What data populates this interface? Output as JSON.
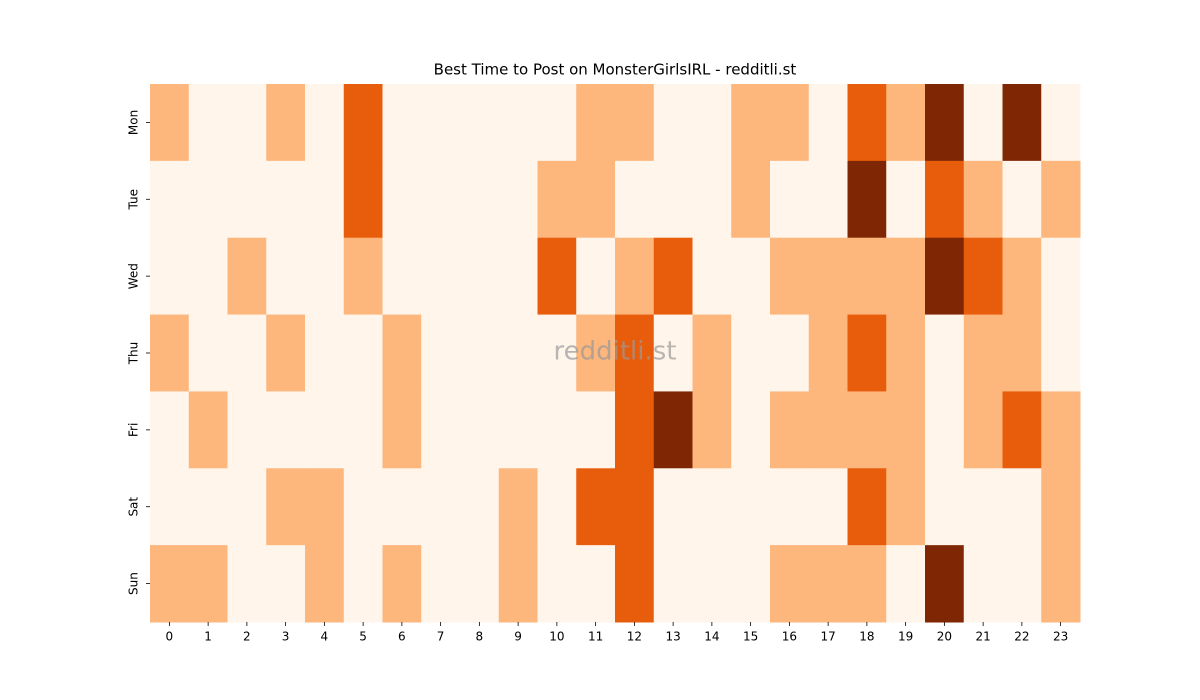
{
  "chart_data": {
    "type": "heatmap",
    "title": "Best Time to Post on MonsterGirlsIRL - redditli.st",
    "watermark": "redditli.st",
    "x_categories": [
      0,
      1,
      2,
      3,
      4,
      5,
      6,
      7,
      8,
      9,
      10,
      11,
      12,
      13,
      14,
      15,
      16,
      17,
      18,
      19,
      20,
      21,
      22,
      23
    ],
    "y_categories": [
      "Mon",
      "Tue",
      "Wed",
      "Thu",
      "Fri",
      "Sat",
      "Sun"
    ],
    "colormap": [
      "#fff5eb",
      "#fdb67c",
      "#e85d0c",
      "#7f2704"
    ],
    "values": [
      [
        1,
        0,
        0,
        1,
        0,
        2,
        0,
        0,
        0,
        0,
        0,
        1,
        1,
        0,
        0,
        1,
        1,
        0,
        2,
        1,
        3,
        0,
        3,
        0
      ],
      [
        0,
        0,
        0,
        0,
        0,
        2,
        0,
        0,
        0,
        0,
        1,
        1,
        0,
        0,
        0,
        1,
        0,
        0,
        3,
        0,
        2,
        1,
        0,
        1
      ],
      [
        0,
        0,
        1,
        0,
        0,
        1,
        0,
        0,
        0,
        0,
        2,
        0,
        1,
        2,
        0,
        0,
        1,
        1,
        1,
        1,
        3,
        2,
        1,
        0
      ],
      [
        1,
        0,
        0,
        1,
        0,
        0,
        1,
        0,
        0,
        0,
        0,
        1,
        2,
        0,
        1,
        0,
        0,
        1,
        2,
        1,
        0,
        1,
        1,
        0
      ],
      [
        0,
        1,
        0,
        0,
        0,
        0,
        1,
        0,
        0,
        0,
        0,
        0,
        2,
        3,
        1,
        0,
        1,
        1,
        1,
        1,
        0,
        1,
        2,
        1
      ],
      [
        0,
        0,
        0,
        1,
        1,
        0,
        0,
        0,
        0,
        1,
        0,
        2,
        2,
        0,
        0,
        0,
        0,
        0,
        2,
        1,
        0,
        0,
        0,
        1
      ],
      [
        1,
        1,
        0,
        0,
        1,
        0,
        1,
        0,
        0,
        1,
        0,
        0,
        2,
        0,
        0,
        0,
        1,
        1,
        1,
        0,
        3,
        0,
        0,
        1
      ]
    ]
  }
}
